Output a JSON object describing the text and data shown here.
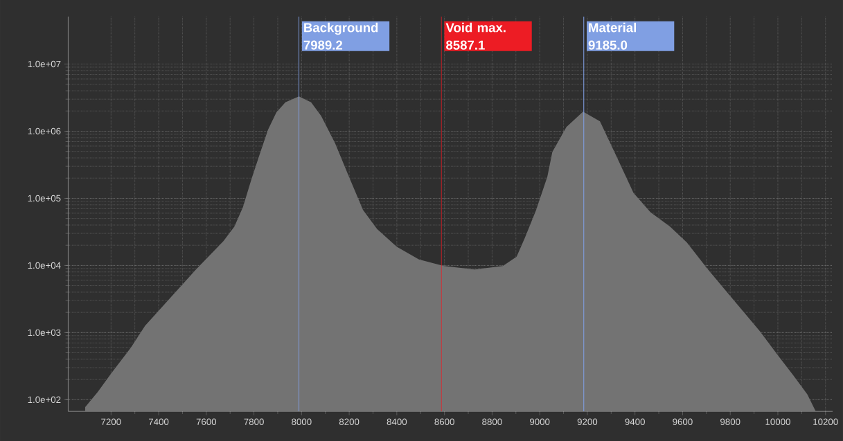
{
  "chart_data": {
    "type": "area",
    "x": [
      7091,
      7144,
      7202,
      7284,
      7343,
      7437,
      7554,
      7672,
      7718,
      7754,
      7789,
      7824,
      7859,
      7894,
      7932,
      7989,
      8040,
      8082,
      8141,
      8199,
      8258,
      8317,
      8399,
      8493,
      8598,
      8727,
      8845,
      8903,
      8938,
      8985,
      9032,
      9053,
      9112,
      9182,
      9253,
      9324,
      9394,
      9465,
      9547,
      9618,
      9700,
      9806,
      9924,
      9994,
      10065,
      10124,
      10159
    ],
    "values": [
      77,
      130,
      250,
      600,
      1260,
      2950,
      8500,
      23000,
      38000,
      74000,
      190000,
      450000,
      1050000,
      1900000,
      2700000,
      3300000,
      2700000,
      1700000,
      660000,
      210000,
      67000,
      35000,
      19000,
      12300,
      9800,
      8700,
      9800,
      13500,
      26000,
      67000,
      210000,
      490000,
      1150000,
      1950000,
      1400000,
      410000,
      120000,
      62000,
      38000,
      22000,
      9300,
      3300,
      1050,
      490,
      230,
      120,
      67
    ],
    "color": "#737373",
    "xlim": [
      7020,
      10230
    ],
    "ylim": [
      67,
      51000000
    ],
    "xticks": [
      7200,
      7400,
      7600,
      7800,
      8000,
      8200,
      8400,
      8600,
      8800,
      9000,
      9200,
      9400,
      9600,
      9800,
      10000,
      10200
    ],
    "yticks": [
      {
        "value": 100,
        "label": "1.0e+02"
      },
      {
        "value": 1000,
        "label": "1.0e+03"
      },
      {
        "value": 10000,
        "label": "1.0e+04"
      },
      {
        "value": 100000,
        "label": "1.0e+05"
      },
      {
        "value": 1000000,
        "label": "1.0e+06"
      },
      {
        "value": 10000000,
        "label": "1.0e+07"
      }
    ],
    "log": true,
    "grid": true,
    "ref_lines": [
      {
        "axis": "x",
        "value": 7989.2,
        "label": "Background 7989.2",
        "color": "#809fe3"
      },
      {
        "axis": "x",
        "value": 8587.1,
        "label": "Void max. 8587.1",
        "color": "#ed1c24"
      },
      {
        "axis": "x",
        "value": 9185.0,
        "label": "Material 9185.0",
        "color": "#809fe3"
      }
    ]
  }
}
